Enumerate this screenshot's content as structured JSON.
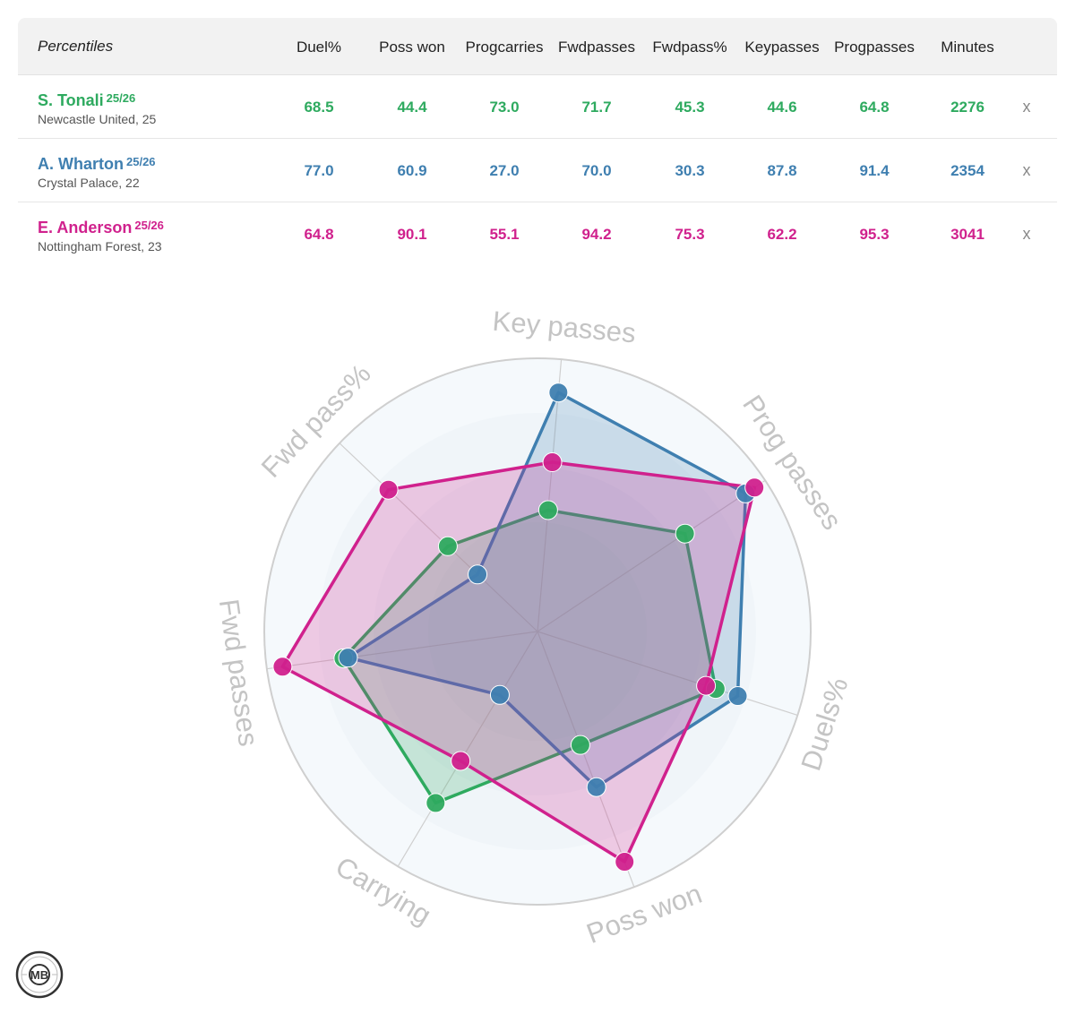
{
  "table": {
    "title": "Percentiles",
    "columns": [
      [
        "Duel%"
      ],
      [
        "Poss won"
      ],
      [
        "Prog",
        "carries"
      ],
      [
        "Fwd",
        "passes"
      ],
      [
        "Fwd",
        "pass%"
      ],
      [
        "Key",
        "passes"
      ],
      [
        "Prog",
        "passes"
      ],
      [
        "Minutes"
      ]
    ],
    "remove_label": "x",
    "players": [
      {
        "name": "S. Tonali",
        "season": "25/26",
        "club": "Newcastle United, 25",
        "color": "#2eaa5f",
        "values": [
          "68.5",
          "44.4",
          "73.0",
          "71.7",
          "45.3",
          "44.6",
          "64.8",
          "2276"
        ]
      },
      {
        "name": "A. Wharton",
        "season": "25/26",
        "club": "Crystal Palace, 22",
        "color": "#3f7fb0",
        "values": [
          "77.0",
          "60.9",
          "27.0",
          "70.0",
          "30.3",
          "87.8",
          "91.4",
          "2354"
        ]
      },
      {
        "name": "E. Anderson",
        "season": "25/26",
        "club": "Nottingham Forest, 23",
        "color": "#d0218d",
        "values": [
          "64.8",
          "90.1",
          "55.1",
          "94.2",
          "75.3",
          "62.2",
          "95.3",
          "3041"
        ]
      }
    ]
  },
  "chart_data": {
    "type": "radar",
    "axes": [
      "Key passes",
      "Prog passes",
      "Duels%",
      "Poss won",
      "Carrying",
      "Fwd passes",
      "Fwd pass%"
    ],
    "range": [
      0,
      100
    ],
    "series": [
      {
        "name": "S. Tonali",
        "color": "#2eaa5f",
        "values": [
          44.6,
          64.8,
          68.5,
          44.4,
          73.0,
          71.7,
          45.3
        ]
      },
      {
        "name": "A. Wharton",
        "color": "#3f7fb0",
        "values": [
          87.8,
          91.4,
          77.0,
          60.9,
          27.0,
          70.0,
          30.3
        ]
      },
      {
        "name": "E. Anderson",
        "color": "#d0218d",
        "values": [
          62.2,
          95.3,
          64.8,
          90.1,
          55.1,
          94.2,
          75.3
        ]
      }
    ]
  },
  "logo": {
    "text": "MB"
  }
}
